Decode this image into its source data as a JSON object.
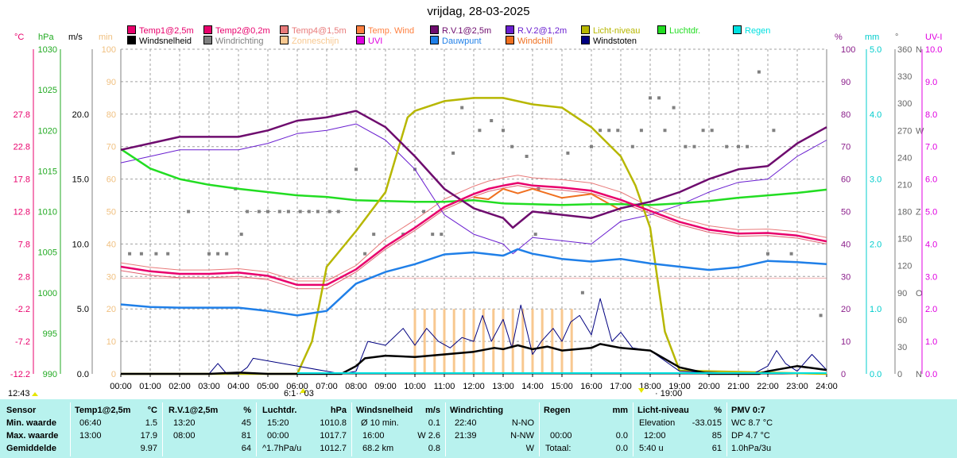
{
  "title": "vrijdag, 28-03-2025",
  "colors": {
    "temp1": "#e8006c",
    "temp2": "#e8006c",
    "temp4": "#e87a7a",
    "tempwind": "#ff8040",
    "rv1": "#6e0c6e",
    "rv2": "#6a1fd0",
    "licht": "#b7b700",
    "luchtdruk": "#22dd22",
    "regen": "#00e0e0",
    "windsnelheid": "#000000",
    "windrichting": "#808080",
    "zonneschijn": "#f8c890",
    "uvi": "#e000e0",
    "dauwpunt": "#1f7fe8",
    "windchill": "#f07020",
    "windstoten": "#000080",
    "panel": "#b8f2ee"
  },
  "legend": [
    {
      "label": "Temp1@2,5m",
      "color": "#e8006c"
    },
    {
      "label": "Temp2@0,2m",
      "color": "#e8006c"
    },
    {
      "label": "Temp4@1,5m",
      "color": "#e87a7a"
    },
    {
      "label": "Temp. Wind",
      "color": "#ff8040"
    },
    {
      "label": "R.V.1@2,5m",
      "color": "#6e0c6e"
    },
    {
      "label": "R.V.2@1,2m",
      "color": "#6a1fd0"
    },
    {
      "label": "Licht-niveau",
      "color": "#b7b700"
    },
    {
      "label": "Luchtdr.",
      "color": "#22dd22"
    },
    {
      "label": "Regen",
      "color": "#00e0e0"
    },
    {
      "label": "Windsnelheid",
      "color": "#000000"
    },
    {
      "label": "Windrichting",
      "color": "#808080"
    },
    {
      "label": "Zonneschijn",
      "color": "#f8c890"
    },
    {
      "label": "UVI",
      "color": "#e000e0"
    },
    {
      "label": "Dauwpunt",
      "color": "#1f7fe8"
    },
    {
      "label": "Windchill",
      "color": "#f07020"
    },
    {
      "label": "Windstoten",
      "color": "#000080"
    }
  ],
  "axes": {
    "temp_unit": "°C",
    "hpa_unit": "hPa",
    "ms_unit": "m/s",
    "min_unit": "min",
    "pct_unit": "%",
    "mm_unit": "mm",
    "deg_unit": "°",
    "uvi_unit": "UV-I",
    "temp_ticks": [
      "27.8",
      "22.8",
      "17.8",
      "12.8",
      "7.8",
      "2.8",
      "-2.2",
      "-7.2",
      "-12.2"
    ],
    "hpa_ticks": [
      "1030",
      "1025",
      "1020",
      "1015",
      "1010",
      "1005",
      "1000",
      "995",
      "990"
    ],
    "ms_ticks": [
      "20.0",
      "15.0",
      "10.0",
      "5.0",
      "0.0"
    ],
    "min_ticks": [
      "100",
      "90",
      "80",
      "70",
      "60",
      "50",
      "40",
      "30",
      "20",
      "10",
      "0"
    ],
    "pct_ticks": [
      "100",
      "90",
      "80",
      "70",
      "60",
      "50",
      "40",
      "30",
      "20",
      "10",
      "0"
    ],
    "mm_ticks": [
      "5.0",
      "4.0",
      "3.0",
      "2.0",
      "1.0",
      "0.0"
    ],
    "deg_ticks": [
      "360",
      "330",
      "300",
      "270",
      "240",
      "210",
      "180",
      "150",
      "120",
      "90",
      "60",
      "30",
      "0"
    ],
    "compass_labels": [
      "N",
      "W",
      "Z",
      "O",
      "N"
    ],
    "uvi_ticks": [
      "10.0",
      "9.0",
      "8.0",
      "7.0",
      "6.0",
      "5.0",
      "4.0",
      "3.0",
      "2.0",
      "1.0",
      "0.0"
    ],
    "x_ticks": [
      "00:00",
      "01:00",
      "02:00",
      "03:00",
      "04:00",
      "05:00",
      "06:00",
      "07:00",
      "08:00",
      "09:00",
      "10:00",
      "11:00",
      "12:00",
      "13:00",
      "14:00",
      "15:00",
      "16:00",
      "17:00",
      "18:00",
      "19:00",
      "20:00",
      "21:00",
      "22:00",
      "23:00",
      "24:00"
    ]
  },
  "sun_notes": {
    "moon": "12:43",
    "sunrise": "6:1·· 03",
    "sunset": "· 19:00"
  },
  "chart_data": {
    "type": "line",
    "x_unit": "hour",
    "x_range": [
      0,
      24
    ],
    "series": [
      {
        "name": "Temp1@2,5m",
        "unit": "°C",
        "x": [
          0,
          1,
          2,
          3,
          4,
          5,
          6,
          7,
          8,
          9,
          10,
          11,
          12,
          12.5,
          13,
          13.5,
          14,
          15,
          16,
          17,
          18,
          19,
          20,
          21,
          22,
          23,
          24
        ],
        "y": [
          4.3,
          3.6,
          3.2,
          3.2,
          3.4,
          2.9,
          1.5,
          1.5,
          3.9,
          7.4,
          10.3,
          13.5,
          15.5,
          16.3,
          16.8,
          17.2,
          16.8,
          16.5,
          16.0,
          14.6,
          12.9,
          11.2,
          10.0,
          9.4,
          9.5,
          9.1,
          8.2
        ]
      },
      {
        "name": "R.V.1@2,5m",
        "unit": "%",
        "x": [
          0,
          1,
          2,
          3,
          4,
          5,
          6,
          7,
          8,
          9,
          10,
          11,
          12,
          13,
          13.33,
          14,
          15,
          16,
          17,
          18,
          19,
          20,
          21,
          22,
          23,
          24
        ],
        "y": [
          69,
          71,
          73,
          73,
          73,
          75,
          78,
          79,
          81,
          76,
          67,
          57,
          51,
          48,
          45,
          50,
          49,
          48,
          51,
          53,
          56,
          60,
          63,
          64,
          71,
          76
        ]
      },
      {
        "name": "Luchtdr.",
        "unit": "hPa",
        "x": [
          0,
          1,
          2,
          3,
          4,
          5,
          6,
          7,
          8,
          9,
          10,
          11,
          12,
          13,
          14,
          15,
          16,
          17,
          18,
          19,
          20,
          21,
          22,
          23,
          24
        ],
        "y": [
          1017.7,
          1015.3,
          1014.0,
          1013.3,
          1012.8,
          1012.4,
          1012.0,
          1011.8,
          1011.4,
          1011.3,
          1011.2,
          1011.2,
          1011.4,
          1011.0,
          1010.9,
          1010.8,
          1010.9,
          1010.9,
          1010.8,
          1011.0,
          1011.3,
          1011.7,
          1012.0,
          1012.3,
          1012.7
        ]
      },
      {
        "name": "Licht-niveau",
        "unit": "%",
        "x": [
          0,
          6,
          6.5,
          7,
          8,
          9,
          9.75,
          10,
          11,
          12,
          13,
          14,
          15,
          16,
          17,
          17.5,
          18,
          18.5,
          19,
          24
        ],
        "y": [
          0,
          0,
          10,
          33,
          44,
          56,
          79,
          81,
          84,
          85,
          85,
          83,
          82,
          76,
          67,
          58,
          45,
          13,
          1,
          0
        ]
      },
      {
        "name": "Windsnelheid",
        "unit": "m/s",
        "x": [
          0,
          3,
          4,
          5,
          7.5,
          8,
          8.3,
          9,
          10,
          11,
          12,
          12.7,
          13,
          13.5,
          14,
          14.5,
          15,
          16,
          16.3,
          17,
          18,
          19,
          20,
          21,
          21.7,
          22,
          23,
          24
        ],
        "y": [
          0,
          0,
          0.1,
          0,
          0,
          0.6,
          1.2,
          1.4,
          1.3,
          1.5,
          1.7,
          2.0,
          1.9,
          2.2,
          1.9,
          2.1,
          1.8,
          2.0,
          2.3,
          2.0,
          1.8,
          0.5,
          0,
          0,
          0,
          0.2,
          0.6,
          0.3
        ]
      },
      {
        "name": "Dauwpunt",
        "unit": "°C",
        "x": [
          0,
          1,
          2,
          3,
          4,
          5,
          6,
          7,
          8,
          9,
          10,
          11,
          12,
          13,
          13.5,
          14,
          15,
          16,
          17,
          18,
          19,
          20,
          21,
          22,
          23,
          24
        ],
        "y": [
          -1.5,
          -1.9,
          -2.0,
          -2.0,
          -2.0,
          -2.5,
          -3.2,
          -2.5,
          1.7,
          3.5,
          4.7,
          6.2,
          6.5,
          6.0,
          7.0,
          6.3,
          5.5,
          5.1,
          5.5,
          4.8,
          4.3,
          3.8,
          4.2,
          5.2,
          5.0,
          4.7
        ]
      }
    ],
    "zonneschijn_bars_x": [
      10,
      10.33,
      10.67,
      11,
      11.33,
      11.67,
      12,
      12.33,
      12.67,
      13,
      13.33,
      13.67,
      14,
      14.33,
      14.67,
      15,
      15.33
    ],
    "zonneschijn_value_min": 20
  },
  "panel": {
    "col1": [
      "Sensor",
      "Min. waarde",
      "Max. waarde",
      "Gemiddelde"
    ],
    "col2": {
      "title": "Temp1@2,5m",
      "unit": "°C",
      "min_time": "06:40",
      "min": "1.5",
      "max_time": "13:00",
      "max": "17.9",
      "avg": "9.97"
    },
    "col3": {
      "title": "R.V.1@2,5m",
      "unit": "%",
      "min_time": "13:20",
      "min": "45",
      "max_time": "08:00",
      "max": "81",
      "avg": "64"
    },
    "col4": {
      "title": "Luchtdr.",
      "unit": "hPa",
      "min_time": "15:20",
      "min": "1010.8",
      "max_time": "00:00",
      "max": "1017.7",
      "avg_note": "^1.7hPa/u",
      "avg": "1012.7"
    },
    "col5": {
      "title": "Windsnelheid",
      "unit": "m/s",
      "r1a": "Ø 10 min.",
      "r1b": "0.1",
      "r2a": "16:00",
      "r2b": "W 2.6",
      "r3a": "68.2 km",
      "r3b": "0.8"
    },
    "col6": {
      "title": "Windrichting",
      "r1a": "22:40",
      "r1b": "N-NO",
      "r2a": "21:39",
      "r2b": "N-NW",
      "r3b": "W"
    },
    "col7": {
      "title": "Regen",
      "unit": "mm",
      "r2a": "00:00",
      "r2b": "0.0",
      "r3a": "Totaal:",
      "r3b": "0.0"
    },
    "col8": {
      "title": "Licht-niveau",
      "unit": "%",
      "r1a": "Elevation",
      "r1b": "-33.015",
      "r2a": "12:00",
      "r2b": "85",
      "r3a": "5:40 u",
      "r3b": "61"
    },
    "col9": {
      "title": "PMV 0:7",
      "r1": "WC 8.7 °C",
      "r2": "DP 4.7 °C",
      "r3": "1.0hPa/3u"
    }
  }
}
